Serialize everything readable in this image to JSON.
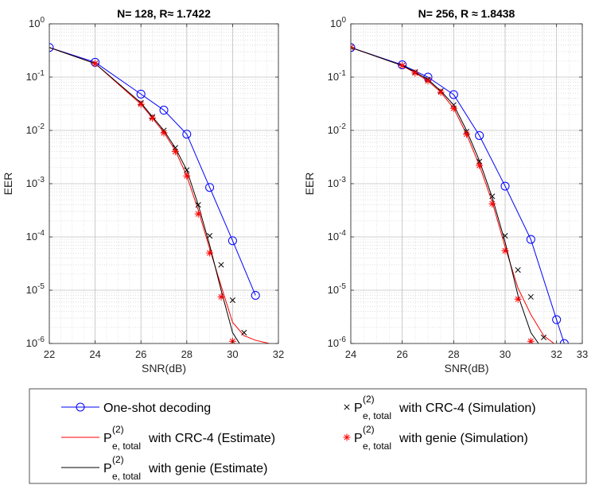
{
  "legend": {
    "items": [
      {
        "key": "oneshot",
        "color": "#0000ff",
        "marker": "circle",
        "line": true,
        "main": "One-shot decoding",
        "sup": "",
        "sub": "",
        "rest": ""
      },
      {
        "key": "crc_est",
        "color": "#ff0000",
        "marker": "none",
        "line": true,
        "main": "P",
        "sup": "(2)",
        "sub": "e, total",
        "rest": " with CRC-4 (Estimate)"
      },
      {
        "key": "genie_est",
        "color": "#000000",
        "marker": "none",
        "line": true,
        "main": "P",
        "sup": "(2)",
        "sub": "e, total",
        "rest": " with genie (Estimate)"
      },
      {
        "key": "crc_sim",
        "color": "#000000",
        "marker": "x",
        "line": false,
        "main": "P",
        "sup": "(2)",
        "sub": "e, total",
        "rest": " with CRC-4 (Simulation)"
      },
      {
        "key": "genie_sim",
        "color": "#ff0000",
        "marker": "star",
        "line": false,
        "main": "P",
        "sup": "(2)",
        "sub": "e, total",
        "rest": " with genie (Simulation)"
      }
    ]
  },
  "chart_data": [
    {
      "type": "line",
      "title": "N= 128, R≈ 1.7422",
      "xlabel": "SNR(dB)",
      "ylabel": "EER",
      "yscale": "log",
      "xlim": [
        22,
        32
      ],
      "ylim": [
        1e-06,
        1
      ],
      "xticks": [
        22,
        24,
        26,
        28,
        30,
        32
      ],
      "yticks": [
        1e-06,
        1e-05,
        0.0001,
        0.001,
        0.01,
        0.1,
        1
      ],
      "grid": true,
      "series": [
        {
          "name": "One-shot decoding",
          "key": "oneshot",
          "x": [
            22,
            24,
            26,
            27,
            28,
            29,
            30,
            31
          ],
          "y": [
            0.36,
            0.19,
            0.048,
            0.024,
            0.0085,
            0.00085,
            8.5e-05,
            8e-06
          ]
        },
        {
          "name": "P(2) e,total with CRC-4 (Estimate)",
          "key": "crc_est",
          "x": [
            22,
            24,
            26,
            26.5,
            27,
            27.5,
            28,
            28.5,
            29,
            29.5,
            30,
            30.5,
            31,
            31.6
          ],
          "y": [
            0.36,
            0.18,
            0.031,
            0.017,
            0.0092,
            0.0042,
            0.0014,
            0.00032,
            6e-05,
            1.2e-05,
            2.5e-06,
            1.4e-06,
            1.15e-06,
            1e-06
          ]
        },
        {
          "name": "P(2) e,total with genie (Estimate)",
          "key": "genie_est",
          "x": [
            22,
            24,
            26,
            26.5,
            27,
            27.5,
            28,
            28.5,
            29,
            29.5,
            30,
            30.3
          ],
          "y": [
            0.36,
            0.18,
            0.033,
            0.018,
            0.01,
            0.0047,
            0.0018,
            0.0004,
            7e-05,
            1e-05,
            1.6e-06,
            1e-06
          ]
        },
        {
          "name": "P(2) e,total with CRC-4 (Simulation)",
          "key": "crc_sim",
          "x": [
            24,
            26,
            26.5,
            27,
            27.5,
            28,
            28.5,
            29,
            29.5,
            30,
            30.5
          ],
          "y": [
            0.18,
            0.033,
            0.018,
            0.01,
            0.0047,
            0.0018,
            0.0004,
            0.000105,
            3e-05,
            6.5e-06,
            1.6e-06
          ]
        },
        {
          "name": "P(2) e,total with genie (Simulation)",
          "key": "genie_sim",
          "x": [
            24,
            26,
            26.5,
            27,
            27.5,
            28,
            28.5,
            29,
            29.5,
            30
          ],
          "y": [
            0.18,
            0.031,
            0.017,
            0.009,
            0.004,
            0.0014,
            0.00027,
            5e-05,
            7.5e-06,
            1.1e-06
          ]
        }
      ]
    },
    {
      "type": "line",
      "title": "N= 256, R ≈ 1.8438",
      "xlabel": "SNR(dB)",
      "ylabel": "EER",
      "yscale": "log",
      "xlim": [
        24,
        33
      ],
      "ylim": [
        1e-06,
        1
      ],
      "xticks": [
        24,
        26,
        28,
        30,
        32,
        33
      ],
      "yticks": [
        1e-06,
        1e-05,
        0.0001,
        0.001,
        0.01,
        0.1,
        1
      ],
      "grid": true,
      "series": [
        {
          "name": "One-shot decoding",
          "key": "oneshot",
          "x": [
            24,
            26,
            27,
            28,
            29,
            30,
            31,
            32,
            32.3
          ],
          "y": [
            0.36,
            0.17,
            0.1,
            0.047,
            0.008,
            0.0009,
            9e-05,
            2.8e-06,
            1e-06
          ]
        },
        {
          "name": "P(2) e,total with CRC-4 (Estimate)",
          "key": "crc_est",
          "x": [
            24,
            26,
            26.5,
            27,
            27.5,
            28,
            28.5,
            29,
            29.5,
            30,
            30.5,
            31,
            31.5,
            31.9
          ],
          "y": [
            0.36,
            0.165,
            0.12,
            0.085,
            0.052,
            0.026,
            0.0085,
            0.0022,
            0.00045,
            6.5e-05,
            1.1e-05,
            3.5e-06,
            1.4e-06,
            1e-06
          ]
        },
        {
          "name": "P(2) e,total with genie (Estimate)",
          "key": "genie_est",
          "x": [
            24,
            26,
            26.5,
            27,
            27.5,
            28,
            28.5,
            29,
            29.5,
            30,
            30.5,
            31,
            31.3
          ],
          "y": [
            0.36,
            0.165,
            0.125,
            0.09,
            0.055,
            0.03,
            0.01,
            0.0027,
            0.00055,
            8e-05,
            8e-06,
            1.6e-06,
            1e-06
          ]
        },
        {
          "name": "P(2) e,total with CRC-4 (Simulation)",
          "key": "crc_sim",
          "x": [
            24,
            26,
            26.5,
            27,
            27.5,
            28,
            28.5,
            29,
            29.5,
            30,
            30.5,
            31,
            31.5
          ],
          "y": [
            0.36,
            0.165,
            0.125,
            0.09,
            0.055,
            0.03,
            0.0095,
            0.0026,
            0.00058,
            0.000105,
            2.4e-05,
            7.5e-06,
            1.3e-06
          ]
        },
        {
          "name": "P(2) e,total with genie (Simulation)",
          "key": "genie_sim",
          "x": [
            24,
            26,
            26.5,
            27,
            27.5,
            28,
            28.5,
            29,
            29.5,
            30,
            30.5,
            31
          ],
          "y": [
            0.36,
            0.165,
            0.12,
            0.085,
            0.052,
            0.026,
            0.0085,
            0.0022,
            0.00042,
            5.5e-05,
            6.8e-06,
            1.1e-06
          ]
        }
      ]
    }
  ]
}
